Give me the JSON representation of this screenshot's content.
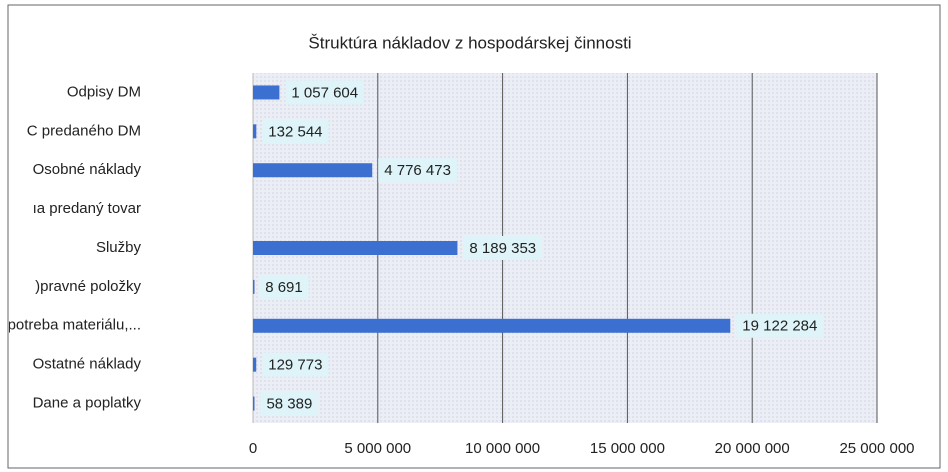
{
  "chart_data": {
    "type": "bar",
    "orientation": "horizontal",
    "title": "Štruktúra nákladov z hospodárskej činnosti",
    "categories": [
      "Odpisy DM",
      "C predaného DM",
      "Osobné náklady",
      "ıa predaný tovar",
      "Služby",
      ")pravné položky",
      "Spotreba materiálu,...",
      "Ostatné náklady",
      "Dane a poplatky"
    ],
    "values": [
      1057604,
      132544,
      4776473,
      null,
      8189353,
      8691,
      19122284,
      129773,
      58389
    ],
    "value_labels": [
      "1 057 604",
      "132 544",
      "4 776 473",
      null,
      "8 189 353",
      "8 691",
      "19 122 284",
      "129 773",
      "58 389"
    ],
    "color": "#3b6fd0",
    "xlim": [
      0,
      25000000
    ],
    "xticks": [
      0,
      {
        "value": 5000000,
        "label": "5 000 000"
      },
      {
        "value": 10000000,
        "label": "10 000 000"
      },
      {
        "value": 15000000,
        "label": "15 000 000"
      },
      {
        "value": 20000000,
        "label": "20 000 000"
      },
      {
        "value": 25000000,
        "label": "25 000 000"
      }
    ],
    "grid": true
  }
}
